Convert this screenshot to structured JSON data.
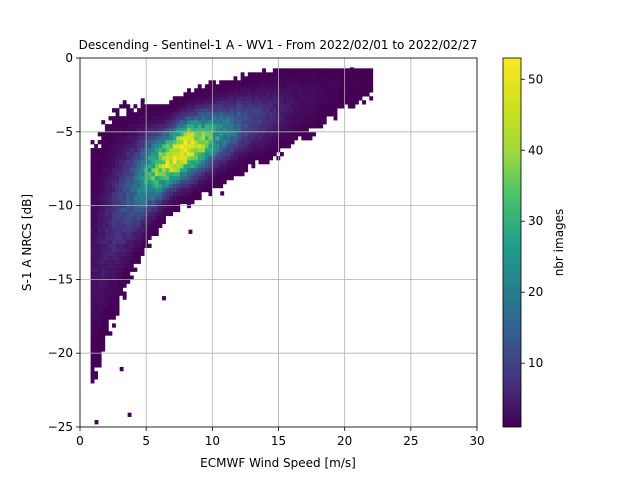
{
  "chart_data": {
    "type": "heatmap",
    "title": "Descending - Sentinel-1 A - WV1 - From 2022/02/01 to 2022/02/27",
    "xlabel": "ECMWF Wind Speed [m/s]",
    "ylabel": "S-1 A NRCS [dB]",
    "xlim": [
      0,
      30
    ],
    "ylim": [
      -25,
      0
    ],
    "xticks": [
      0,
      5,
      10,
      15,
      20,
      25,
      30
    ],
    "yticks": [
      -25,
      -20,
      -15,
      -10,
      -5,
      0
    ],
    "xtick_labels": [
      "0",
      "5",
      "10",
      "15",
      "20",
      "25",
      "30"
    ],
    "ytick_labels": [
      "−25",
      "−20",
      "−15",
      "−10",
      "−5",
      "0"
    ],
    "grid": true,
    "colormap": "viridis",
    "colorbar": {
      "label": "nbr images",
      "range": [
        1,
        53
      ],
      "ticks": [
        10,
        20,
        30,
        40,
        50
      ],
      "tick_labels": [
        "10",
        "20",
        "30",
        "40",
        "50"
      ]
    },
    "density_ridge": [
      {
        "wind": 1,
        "nrcs": -14.0,
        "spread": 3.8,
        "peak": 3
      },
      {
        "wind": 2,
        "nrcs": -11.5,
        "spread": 3.0,
        "peak": 6
      },
      {
        "wind": 3,
        "nrcs": -10.0,
        "spread": 2.5,
        "peak": 10
      },
      {
        "wind": 4,
        "nrcs": -9.0,
        "spread": 2.0,
        "peak": 16
      },
      {
        "wind": 5,
        "nrcs": -8.0,
        "spread": 1.6,
        "peak": 28
      },
      {
        "wind": 6,
        "nrcs": -7.4,
        "spread": 1.3,
        "peak": 40
      },
      {
        "wind": 7,
        "nrcs": -6.7,
        "spread": 1.2,
        "peak": 50
      },
      {
        "wind": 8,
        "nrcs": -6.2,
        "spread": 1.2,
        "peak": 53
      },
      {
        "wind": 9,
        "nrcs": -5.8,
        "spread": 1.2,
        "peak": 40
      },
      {
        "wind": 10,
        "nrcs": -5.4,
        "spread": 1.2,
        "peak": 28
      },
      {
        "wind": 11,
        "nrcs": -5.0,
        "spread": 1.2,
        "peak": 20
      },
      {
        "wind": 12,
        "nrcs": -4.6,
        "spread": 1.2,
        "peak": 14
      },
      {
        "wind": 13,
        "nrcs": -4.3,
        "spread": 1.2,
        "peak": 10
      },
      {
        "wind": 14,
        "nrcs": -4.0,
        "spread": 1.3,
        "peak": 7
      },
      {
        "wind": 15,
        "nrcs": -3.6,
        "spread": 1.3,
        "peak": 5
      },
      {
        "wind": 16,
        "nrcs": -3.2,
        "spread": 1.3,
        "peak": 3
      },
      {
        "wind": 17,
        "nrcs": -2.9,
        "spread": 1.3,
        "peak": 2.5
      },
      {
        "wind": 18,
        "nrcs": -2.5,
        "spread": 1.2,
        "peak": 2
      },
      {
        "wind": 19,
        "nrcs": -2.2,
        "spread": 1.1,
        "peak": 1.5
      },
      {
        "wind": 20,
        "nrcs": -1.9,
        "spread": 1.0,
        "peak": 1.2
      },
      {
        "wind": 21,
        "nrcs": -1.6,
        "spread": 0.9,
        "peak": 1
      }
    ],
    "outliers": [
      {
        "wind": 21.8,
        "nrcs": -1.8
      },
      {
        "wind": 20.4,
        "nrcs": -0.9
      },
      {
        "wind": 20.2,
        "nrcs": -1.3
      },
      {
        "wind": 6.2,
        "nrcs": -16.4
      },
      {
        "wind": 3.6,
        "nrcs": -24.3
      },
      {
        "wind": 1.1,
        "nrcs": -24.8
      },
      {
        "wind": 8.2,
        "nrcs": -11.9
      },
      {
        "wind": 4.6,
        "nrcs": -3.0
      },
      {
        "wind": 8.1,
        "nrcs": -2.8
      },
      {
        "wind": 10.6,
        "nrcs": -9.3
      },
      {
        "wind": 3.0,
        "nrcs": -21.2
      }
    ]
  }
}
